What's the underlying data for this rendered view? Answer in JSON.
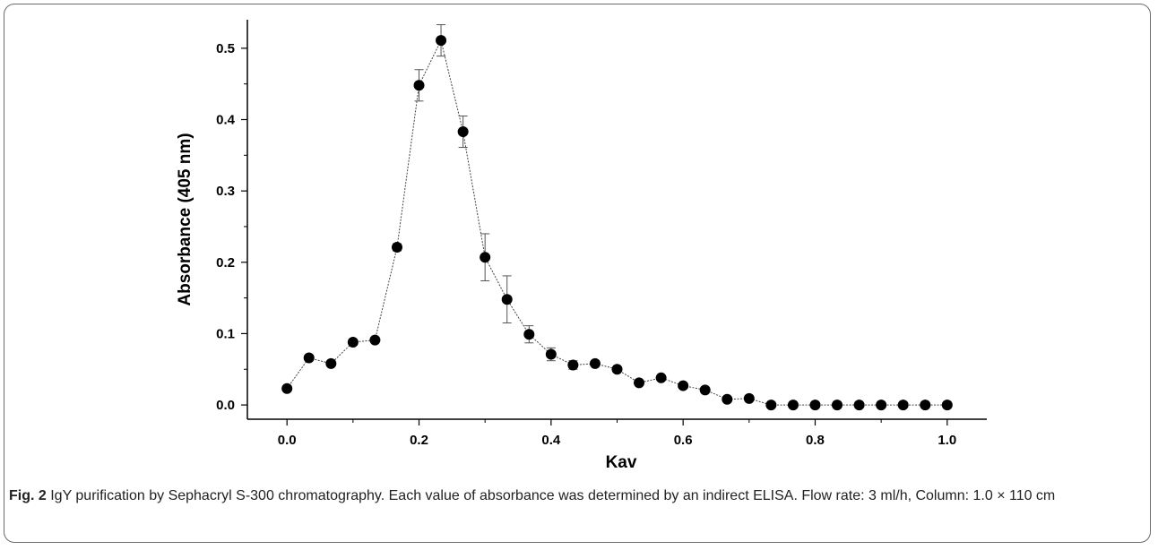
{
  "caption": {
    "label": "Fig. 2",
    "text": " IgY purification by Sephacryl S-300 chromatography. Each value of absorbance was determined by an indirect ELISA. Flow rate: 3 ml/h, Column: 1.0 × 110 cm"
  },
  "chart_data": {
    "type": "scatter",
    "style": "line-with-markers-and-error-bars",
    "xlabel": "Kav",
    "ylabel": "Absorbance (405 nm)",
    "xlim": [
      -0.06,
      1.06
    ],
    "ylim": [
      -0.02,
      0.54
    ],
    "xticks": [
      "0.0",
      "0.2",
      "0.4",
      "0.6",
      "0.8",
      "1.0"
    ],
    "yticks": [
      "0.0",
      "0.1",
      "0.2",
      "0.3",
      "0.4",
      "0.5"
    ],
    "grid": false,
    "colors": {
      "marker": "#000000",
      "line": "#444444"
    },
    "x": [
      0,
      0.0333,
      0.0667,
      0.1,
      0.1333,
      0.1667,
      0.2,
      0.2333,
      0.2667,
      0.3,
      0.3333,
      0.3667,
      0.4,
      0.4333,
      0.4667,
      0.5,
      0.5333,
      0.5667,
      0.6,
      0.6333,
      0.6667,
      0.7,
      0.7333,
      0.7667,
      0.8,
      0.8333,
      0.8667,
      0.9,
      0.9333,
      0.9667,
      1.0
    ],
    "y": [
      0.023,
      0.066,
      0.058,
      0.088,
      0.091,
      0.221,
      0.448,
      0.511,
      0.383,
      0.207,
      0.148,
      0.099,
      0.071,
      0.056,
      0.058,
      0.05,
      0.031,
      0.038,
      0.027,
      0.021,
      0.008,
      0.009,
      0.0,
      0.0,
      0.0,
      0.0,
      0.0,
      0.0,
      0.0,
      0.0,
      0.0
    ],
    "yerr": [
      0,
      0,
      0,
      0,
      0,
      0.005,
      0.022,
      0.022,
      0.022,
      0.033,
      0.033,
      0.012,
      0.009,
      0.006,
      0,
      0,
      0,
      0,
      0,
      0,
      0,
      0,
      0,
      0,
      0,
      0,
      0,
      0,
      0,
      0,
      0
    ]
  }
}
